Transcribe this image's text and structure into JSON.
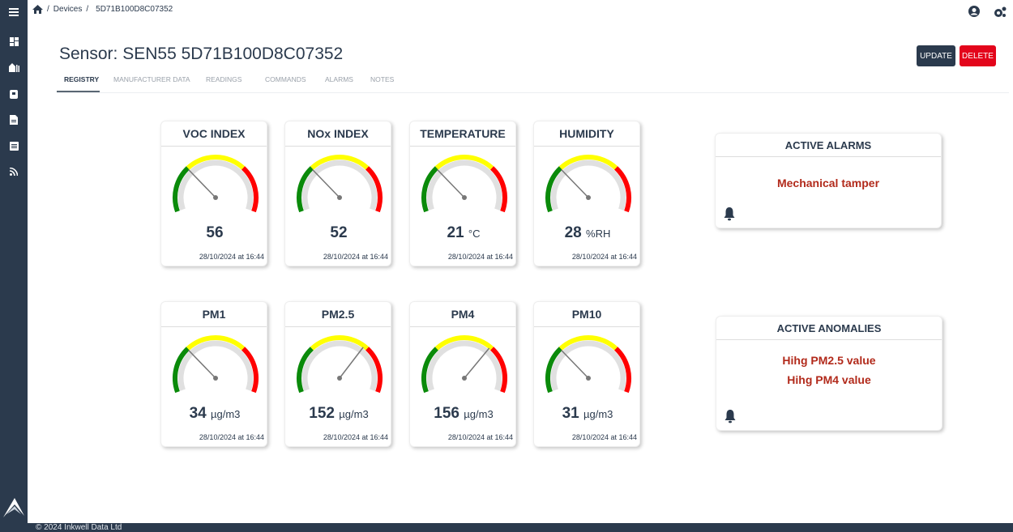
{
  "breadcrumb": {
    "home_icon": "home-icon",
    "items": [
      "Devices",
      "5D71B100D8C07352"
    ]
  },
  "header": {
    "title": "Sensor: SEN55 5D71B100D8C07352",
    "update_label": "UPDATE",
    "delete_label": "DELETE",
    "user_icon": "user-circle-icon",
    "settings_icon": "gears-icon"
  },
  "tabs": [
    {
      "label": "REGISTRY",
      "active": true
    },
    {
      "label": "MANUFACTURER DATA"
    },
    {
      "label": "READINGS"
    },
    {
      "label": "COMMANDS"
    },
    {
      "label": "ALARMS"
    },
    {
      "label": "NOTES"
    }
  ],
  "sidebar": {
    "icons": [
      "menu-icon",
      "dashboard-icon",
      "buildings-icon",
      "device-icon",
      "document-icon",
      "list-icon",
      "rss-icon"
    ]
  },
  "colors": {
    "sidebar": "#2b3a4d",
    "update": "#2b3a4d",
    "delete": "#e3051b",
    "green": "#0a8a0a",
    "yellow": "#ffff00",
    "red": "#ff0000",
    "alert_text": "#b22a1b"
  },
  "gauges": [
    {
      "title": "VOC INDEX",
      "value": "56",
      "unit": "",
      "timestamp": "28/10/2024 at 16:44",
      "level": 0.3
    },
    {
      "title": "NOx INDEX",
      "value": "52",
      "unit": "",
      "timestamp": "28/10/2024 at 16:44",
      "level": 0.3
    },
    {
      "title": "TEMPERATURE",
      "value": "21",
      "unit": "°C",
      "timestamp": "28/10/2024 at 16:44",
      "level": 0.3
    },
    {
      "title": "HUMIDITY",
      "value": "28",
      "unit": "%RH",
      "timestamp": "28/10/2024 at 16:44",
      "level": 0.3
    },
    {
      "title": "PM1",
      "value": "34",
      "unit": "µg/m3",
      "timestamp": "28/10/2024 at 16:44",
      "level": 0.3
    },
    {
      "title": "PM2.5",
      "value": "152",
      "unit": "µg/m3",
      "timestamp": "28/10/2024 at 16:44",
      "level": 0.67
    },
    {
      "title": "PM4",
      "value": "156",
      "unit": "µg/m3",
      "timestamp": "28/10/2024 at 16:44",
      "level": 0.68
    },
    {
      "title": "PM10",
      "value": "31",
      "unit": "µg/m3",
      "timestamp": "28/10/2024 at 16:44",
      "level": 0.3
    }
  ],
  "alarms": {
    "title": "ACTIVE ALARMS",
    "items": [
      "Mechanical tamper"
    ]
  },
  "anomalies": {
    "title": "ACTIVE ANOMALIES",
    "items": [
      "Hihg PM2.5 value",
      "Hihg PM4 value"
    ]
  },
  "footer": {
    "text": "© 2024 Inkwell Data Ltd"
  }
}
